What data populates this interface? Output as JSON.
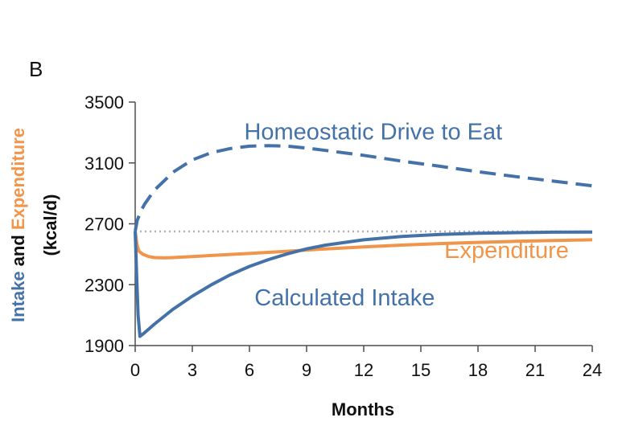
{
  "panel_label": "B",
  "colors": {
    "blue": "#4472a8",
    "orange": "#f0954a",
    "reference": "#b3b3b3",
    "axis": "#4d4d4d"
  },
  "chart_data": {
    "type": "line",
    "xlabel": "Months",
    "ylabel_parts": {
      "intake": "Intake",
      "and": " and ",
      "expenditure": "Expenditure",
      "units": "(kcal/d)"
    },
    "xlim": [
      0,
      24
    ],
    "ylim": [
      1900,
      3500
    ],
    "xticks": [
      0,
      3,
      6,
      9,
      12,
      15,
      18,
      21,
      24
    ],
    "yticks": [
      1900,
      2300,
      2700,
      3100,
      3500
    ],
    "reference_line": {
      "y": 2650,
      "style": "dotted",
      "color": "reference"
    },
    "series": [
      {
        "name": "Homeostatic Drive to Eat",
        "color": "blue",
        "style": "dashed",
        "points": [
          [
            0,
            2650
          ],
          [
            0.1,
            2720
          ],
          [
            0.3,
            2785
          ],
          [
            0.5,
            2830
          ],
          [
            1,
            2920
          ],
          [
            2,
            3040
          ],
          [
            3,
            3120
          ],
          [
            4,
            3168
          ],
          [
            5,
            3195
          ],
          [
            6,
            3210
          ],
          [
            7,
            3214
          ],
          [
            8,
            3210
          ],
          [
            9,
            3198
          ],
          [
            10,
            3182
          ],
          [
            12,
            3150
          ],
          [
            14,
            3112
          ],
          [
            16,
            3078
          ],
          [
            18,
            3042
          ],
          [
            20,
            3010
          ],
          [
            22,
            2980
          ],
          [
            24,
            2950
          ]
        ]
      },
      {
        "name": "Expenditure",
        "color": "orange",
        "style": "solid",
        "points": [
          [
            0,
            2650
          ],
          [
            0.1,
            2560
          ],
          [
            0.2,
            2520
          ],
          [
            0.4,
            2500
          ],
          [
            0.7,
            2485
          ],
          [
            1,
            2478
          ],
          [
            1.5,
            2476
          ],
          [
            2,
            2478
          ],
          [
            3,
            2485
          ],
          [
            4,
            2492
          ],
          [
            6,
            2505
          ],
          [
            8,
            2520
          ],
          [
            10,
            2535
          ],
          [
            12,
            2548
          ],
          [
            14,
            2560
          ],
          [
            16,
            2570
          ],
          [
            18,
            2578
          ],
          [
            20,
            2585
          ],
          [
            22,
            2590
          ],
          [
            24,
            2595
          ]
        ]
      },
      {
        "name": "Calculated Intake",
        "color": "blue",
        "style": "solid",
        "points": [
          [
            0,
            2650
          ],
          [
            0.08,
            2350
          ],
          [
            0.15,
            2100
          ],
          [
            0.25,
            1960
          ],
          [
            0.5,
            1985
          ],
          [
            1,
            2040
          ],
          [
            1.5,
            2090
          ],
          [
            2,
            2140
          ],
          [
            3,
            2225
          ],
          [
            4,
            2300
          ],
          [
            5,
            2365
          ],
          [
            6,
            2420
          ],
          [
            7,
            2465
          ],
          [
            8,
            2503
          ],
          [
            9,
            2535
          ],
          [
            10,
            2560
          ],
          [
            12,
            2595
          ],
          [
            14,
            2617
          ],
          [
            16,
            2630
          ],
          [
            18,
            2638
          ],
          [
            20,
            2642
          ],
          [
            22,
            2645
          ],
          [
            24,
            2646
          ]
        ]
      }
    ]
  }
}
